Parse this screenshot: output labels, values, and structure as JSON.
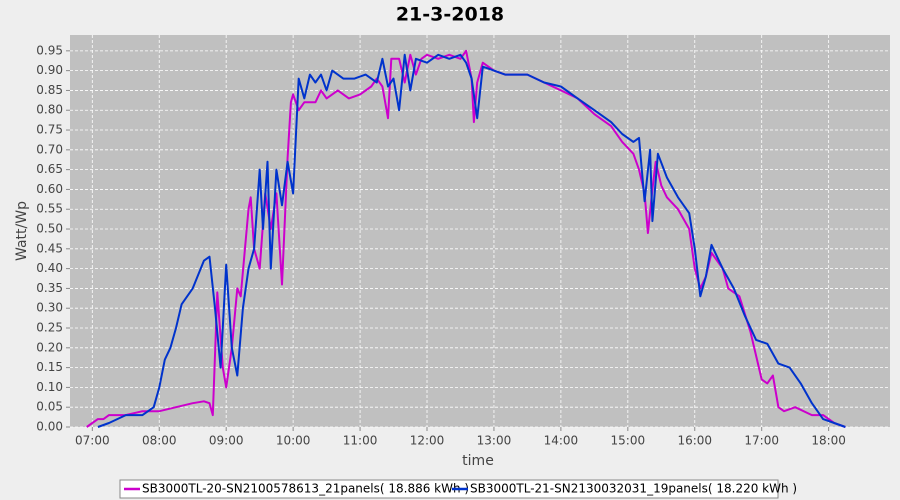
{
  "chart_data": {
    "type": "line",
    "title": "21-3-2018",
    "x_label": "time",
    "y_label": "Watt/Wp",
    "xlim": [
      "06:40",
      "18:55"
    ],
    "xticks": [
      "07:00",
      "08:00",
      "09:00",
      "10:00",
      "11:00",
      "12:00",
      "13:00",
      "14:00",
      "15:00",
      "16:00",
      "17:00",
      "18:00"
    ],
    "ylim": [
      0,
      0.99
    ],
    "yticks": [
      {
        "value": 0,
        "label": "0.00"
      },
      {
        "value": 0.05,
        "label": "0.05"
      },
      {
        "value": 0.1,
        "label": "0.10"
      },
      {
        "value": 0.15,
        "label": "0.15"
      },
      {
        "value": 0.2,
        "label": "0.20"
      },
      {
        "value": 0.25,
        "label": "0.25"
      },
      {
        "value": 0.3,
        "label": "0.30"
      },
      {
        "value": 0.35,
        "label": "0.35"
      },
      {
        "value": 0.4,
        "label": "0.40"
      },
      {
        "value": 0.45,
        "label": "0.45"
      },
      {
        "value": 0.5,
        "label": "0.50"
      },
      {
        "value": 0.55,
        "label": "0.55"
      },
      {
        "value": 0.6,
        "label": "0.60"
      },
      {
        "value": 0.65,
        "label": "0.65"
      },
      {
        "value": 0.7,
        "label": "0.70"
      },
      {
        "value": 0.75,
        "label": "0.75"
      },
      {
        "value": 0.8,
        "label": "0.80"
      },
      {
        "value": 0.85,
        "label": "0.85"
      },
      {
        "value": 0.9,
        "label": "0.90"
      },
      {
        "value": 0.95,
        "label": "0.95"
      }
    ],
    "grid": true,
    "legend": "bottom",
    "series": [
      {
        "name": "SB3000TL-20-SN2100578613_21panels( 18.886 kWh )",
        "color": "#cc00cc",
        "x": [
          "06:55",
          "07:00",
          "07:05",
          "07:10",
          "07:15",
          "07:30",
          "07:45",
          "08:00",
          "08:15",
          "08:30",
          "08:40",
          "08:45",
          "08:48",
          "08:52",
          "08:57",
          "09:00",
          "09:05",
          "09:10",
          "09:13",
          "09:20",
          "09:22",
          "09:25",
          "09:30",
          "09:35",
          "09:40",
          "09:45",
          "09:50",
          "09:55",
          "09:58",
          "10:00",
          "10:05",
          "10:10",
          "10:20",
          "10:25",
          "10:30",
          "10:40",
          "10:50",
          "11:00",
          "11:10",
          "11:15",
          "11:20",
          "11:25",
          "11:28",
          "11:35",
          "11:40",
          "11:45",
          "11:50",
          "11:55",
          "12:00",
          "12:10",
          "12:20",
          "12:30",
          "12:35",
          "12:40",
          "12:42",
          "12:45",
          "12:50",
          "13:00",
          "13:10",
          "13:30",
          "13:45",
          "14:00",
          "14:15",
          "14:30",
          "14:45",
          "14:55",
          "15:05",
          "15:10",
          "15:15",
          "15:18",
          "15:22",
          "15:25",
          "15:30",
          "15:35",
          "15:45",
          "15:55",
          "16:00",
          "16:05",
          "16:10",
          "16:15",
          "16:25",
          "16:30",
          "16:40",
          "16:50",
          "17:00",
          "17:05",
          "17:10",
          "17:15",
          "17:20",
          "17:30",
          "17:45",
          "17:55",
          "18:05",
          "18:15"
        ],
        "values": [
          0,
          0.01,
          0.02,
          0.02,
          0.03,
          0.03,
          0.04,
          0.04,
          0.05,
          0.06,
          0.065,
          0.06,
          0.03,
          0.34,
          0.15,
          0.1,
          0.2,
          0.35,
          0.33,
          0.55,
          0.58,
          0.45,
          0.4,
          0.59,
          0.5,
          0.59,
          0.36,
          0.68,
          0.82,
          0.84,
          0.8,
          0.82,
          0.82,
          0.85,
          0.83,
          0.85,
          0.83,
          0.84,
          0.86,
          0.88,
          0.86,
          0.78,
          0.93,
          0.93,
          0.87,
          0.94,
          0.89,
          0.93,
          0.94,
          0.93,
          0.94,
          0.93,
          0.95,
          0.88,
          0.77,
          0.87,
          0.92,
          0.9,
          0.89,
          0.89,
          0.87,
          0.85,
          0.83,
          0.79,
          0.76,
          0.72,
          0.69,
          0.65,
          0.59,
          0.49,
          0.6,
          0.67,
          0.61,
          0.58,
          0.55,
          0.5,
          0.4,
          0.35,
          0.38,
          0.44,
          0.4,
          0.35,
          0.33,
          0.24,
          0.12,
          0.11,
          0.13,
          0.05,
          0.04,
          0.05,
          0.03,
          0.03,
          0.01,
          0
        ]
      },
      {
        "name": "SB3000TL-21-SN2130032031_19panels( 18.220 kWh )",
        "color": "#0033cc",
        "x": [
          "07:05",
          "07:15",
          "07:30",
          "07:45",
          "07:55",
          "08:00",
          "08:05",
          "08:10",
          "08:15",
          "08:20",
          "08:30",
          "08:40",
          "08:45",
          "08:50",
          "08:55",
          "09:00",
          "09:05",
          "09:10",
          "09:15",
          "09:20",
          "09:25",
          "09:30",
          "09:33",
          "09:37",
          "09:40",
          "09:45",
          "09:50",
          "09:55",
          "10:00",
          "10:05",
          "10:10",
          "10:15",
          "10:20",
          "10:25",
          "10:30",
          "10:35",
          "10:45",
          "10:55",
          "11:05",
          "11:15",
          "11:20",
          "11:25",
          "11:30",
          "11:35",
          "11:40",
          "11:45",
          "11:50",
          "12:00",
          "12:10",
          "12:20",
          "12:30",
          "12:35",
          "12:40",
          "12:45",
          "12:50",
          "13:00",
          "13:10",
          "13:30",
          "13:45",
          "14:00",
          "14:15",
          "14:30",
          "14:45",
          "14:55",
          "15:05",
          "15:10",
          "15:15",
          "15:20",
          "15:22",
          "15:27",
          "15:35",
          "15:45",
          "15:55",
          "16:00",
          "16:05",
          "16:10",
          "16:15",
          "16:25",
          "16:35",
          "16:45",
          "16:55",
          "17:05",
          "17:15",
          "17:25",
          "17:35",
          "17:45",
          "17:55",
          "18:05",
          "18:15"
        ],
        "values": [
          0,
          0.01,
          0.03,
          0.03,
          0.05,
          0.1,
          0.17,
          0.2,
          0.25,
          0.31,
          0.35,
          0.42,
          0.43,
          0.3,
          0.15,
          0.41,
          0.2,
          0.13,
          0.3,
          0.4,
          0.45,
          0.65,
          0.5,
          0.67,
          0.4,
          0.65,
          0.56,
          0.67,
          0.59,
          0.88,
          0.83,
          0.89,
          0.87,
          0.89,
          0.85,
          0.9,
          0.88,
          0.88,
          0.89,
          0.87,
          0.93,
          0.86,
          0.88,
          0.8,
          0.94,
          0.85,
          0.93,
          0.92,
          0.94,
          0.93,
          0.94,
          0.92,
          0.88,
          0.78,
          0.91,
          0.9,
          0.89,
          0.89,
          0.87,
          0.86,
          0.83,
          0.8,
          0.77,
          0.74,
          0.72,
          0.73,
          0.57,
          0.7,
          0.52,
          0.69,
          0.63,
          0.58,
          0.54,
          0.45,
          0.33,
          0.38,
          0.46,
          0.4,
          0.35,
          0.28,
          0.22,
          0.21,
          0.16,
          0.15,
          0.11,
          0.06,
          0.02,
          0.01,
          0
        ]
      }
    ]
  }
}
